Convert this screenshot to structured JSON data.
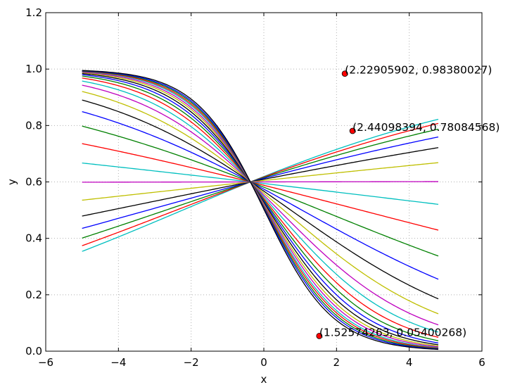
{
  "chart_data": {
    "type": "line",
    "title": "",
    "xlabel": "x",
    "ylabel": "y",
    "xlim": [
      -6,
      6
    ],
    "ylim": [
      0.0,
      1.2
    ],
    "xticks": [
      "−6",
      "−4",
      "−2",
      "0",
      "2",
      "4",
      "6"
    ],
    "xtick_values": [
      -6,
      -4,
      -2,
      0,
      2,
      4,
      6
    ],
    "yticks": [
      "0.0",
      "0.2",
      "0.4",
      "0.6",
      "0.8",
      "1.0",
      "1.2"
    ],
    "ytick_values": [
      0.0,
      0.2,
      0.4,
      0.6,
      0.8,
      1.0,
      1.2
    ],
    "grid": true,
    "legend": "none",
    "x_range": [
      -5,
      4.8
    ],
    "curve_family": {
      "form": "sigmoid",
      "center_x": -0.37,
      "center_y": 0.6,
      "colors": [
        "#00bfbf",
        "#0000ff",
        "#008000",
        "#ff0000",
        "#bf00bf",
        "#bfbf00",
        "#000000"
      ]
    },
    "series": [
      {
        "label": "",
        "color": "#00bfbf",
        "endpoints": [
          0.344,
          0.815
        ]
      },
      {
        "label": "",
        "color": "#ff0000",
        "endpoints": [
          0.364,
          0.8
        ]
      },
      {
        "label": "",
        "color": "#008000",
        "endpoints": [
          0.392,
          0.78
        ]
      },
      {
        "label": "",
        "color": "#0000ff",
        "endpoints": [
          0.43,
          0.755
        ]
      },
      {
        "label": "",
        "color": "#000000",
        "endpoints": [
          0.475,
          0.718
        ]
      },
      {
        "label": "",
        "color": "#bfbf00",
        "endpoints": [
          0.532,
          0.665
        ]
      },
      {
        "label": "",
        "color": "#bf00bf",
        "endpoints": [
          0.598,
          0.6
        ]
      },
      {
        "label": "",
        "color": "#00bfbf",
        "endpoints": [
          0.665,
          0.518
        ]
      },
      {
        "label": "",
        "color": "#ff0000",
        "endpoints": [
          0.735,
          0.428
        ]
      },
      {
        "label": "",
        "color": "#008000",
        "endpoints": [
          0.797,
          0.336
        ]
      },
      {
        "label": "",
        "color": "#0000ff",
        "endpoints": [
          0.848,
          0.253
        ]
      },
      {
        "label": "",
        "color": "#000000",
        "endpoints": [
          0.89,
          0.185
        ]
      },
      {
        "label": "",
        "color": "#bfbf00",
        "endpoints": [
          0.921,
          0.133
        ]
      },
      {
        "label": "",
        "color": "#bf00bf",
        "endpoints": [
          0.944,
          0.095
        ]
      },
      {
        "label": "",
        "color": "#00bfbf",
        "endpoints": [
          0.959,
          0.07
        ]
      },
      {
        "label": "",
        "color": "#ff0000",
        "endpoints": [
          0.97,
          0.052
        ]
      },
      {
        "label": "",
        "color": "#008000",
        "endpoints": [
          0.977,
          0.04
        ]
      },
      {
        "label": "",
        "color": "#0000ff",
        "endpoints": [
          0.982,
          0.032
        ]
      },
      {
        "label": "",
        "color": "#000000",
        "endpoints": [
          0.986,
          0.026
        ]
      },
      {
        "label": "",
        "color": "#bfbf00",
        "endpoints": [
          0.989,
          0.022
        ]
      },
      {
        "label": "",
        "color": "#bf00bf",
        "endpoints": [
          0.991,
          0.019
        ]
      },
      {
        "label": "",
        "color": "#00bfbf",
        "endpoints": [
          0.993,
          0.017
        ]
      },
      {
        "label": "",
        "color": "#ff0000",
        "endpoints": [
          0.994,
          0.015
        ]
      },
      {
        "label": "",
        "color": "#008000",
        "endpoints": [
          0.995,
          0.013
        ]
      },
      {
        "label": "",
        "color": "#0000ff",
        "endpoints": [
          0.996,
          0.012
        ]
      },
      {
        "label": "",
        "color": "#000000",
        "endpoints": [
          0.997,
          0.011
        ]
      }
    ],
    "points": [
      {
        "x": 2.22905902,
        "y": 0.98380027,
        "label": "(2.22905902, 0.98380027)",
        "color": "#ff0000"
      },
      {
        "x": 2.44098394,
        "y": 0.78084568,
        "label": "(2.44098394, 0.78084568)",
        "color": "#ff0000"
      },
      {
        "x": 1.52574263,
        "y": 0.05400268,
        "label": "(1.52574263, 0.05400268)",
        "color": "#ff0000"
      }
    ]
  }
}
